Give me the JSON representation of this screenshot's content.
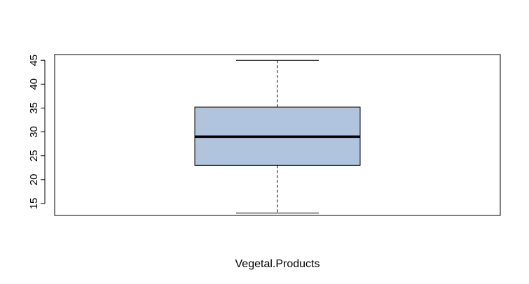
{
  "chart_data": {
    "type": "boxplot",
    "title": "",
    "xlabel": "Vegetal.Products",
    "ylabel": "",
    "ylim": [
      12.5,
      46.2
    ],
    "yticks": [
      15,
      20,
      25,
      30,
      35,
      40,
      45
    ],
    "grid": false,
    "series": [
      {
        "min": 13,
        "q1": 23,
        "median": 29,
        "q3": 35.2,
        "max": 45
      }
    ],
    "colors": {
      "box_fill": "#b0c4de",
      "stroke": "#000000",
      "background": "#ffffff"
    }
  }
}
